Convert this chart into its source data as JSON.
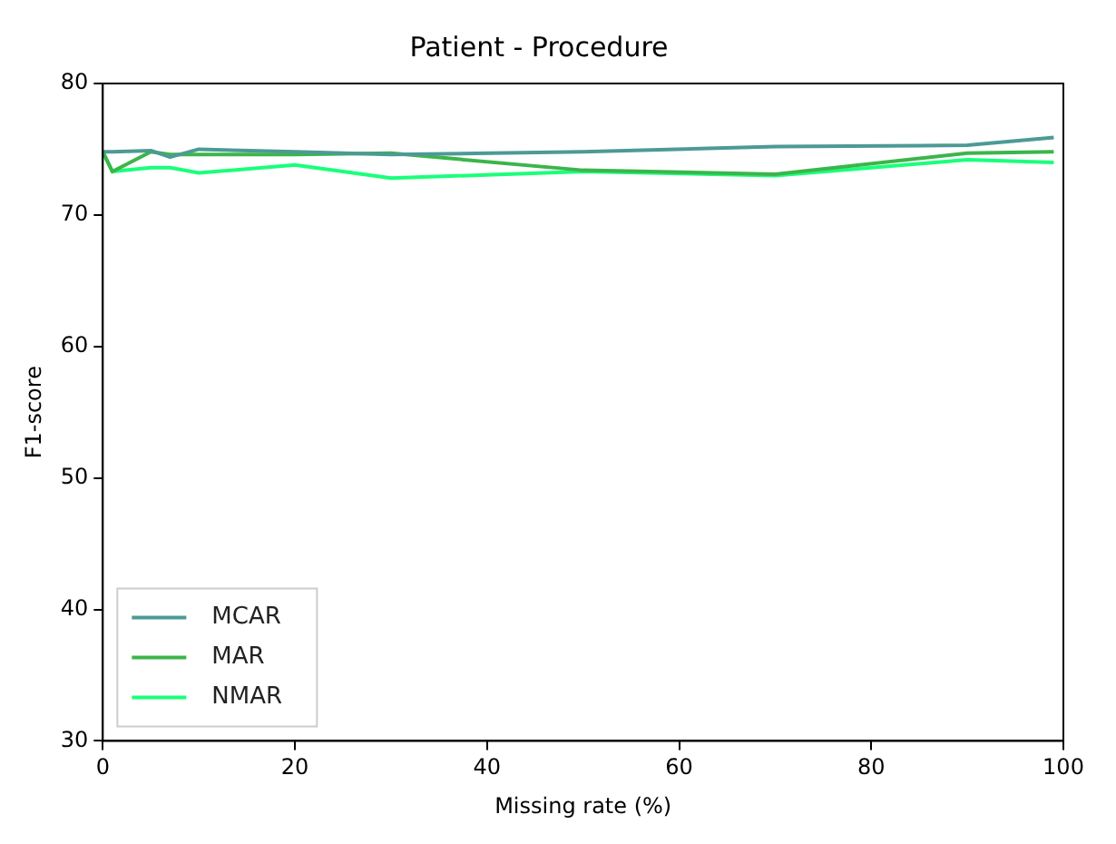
{
  "chart_data": {
    "type": "line",
    "title": "Patient - Procedure",
    "xlabel": "Missing rate (%)",
    "ylabel": "F1-score",
    "x": [
      0,
      1,
      5,
      7,
      10,
      20,
      30,
      50,
      70,
      90,
      99
    ],
    "series": [
      {
        "name": "MCAR",
        "color": "#4c9a95",
        "values": [
          74.8,
          74.8,
          74.9,
          74.4,
          75.0,
          74.8,
          74.6,
          74.8,
          75.2,
          75.3,
          75.9
        ]
      },
      {
        "name": "MAR",
        "color": "#3cb54a",
        "values": [
          74.8,
          73.3,
          74.8,
          74.6,
          74.6,
          74.6,
          74.7,
          73.4,
          73.1,
          74.7,
          74.8
        ]
      },
      {
        "name": "NMAR",
        "color": "#1aff7a",
        "values": [
          74.8,
          73.3,
          73.6,
          73.6,
          73.2,
          73.8,
          72.8,
          73.3,
          73.0,
          74.2,
          74.0
        ]
      }
    ],
    "xlim": [
      0,
      100
    ],
    "xticks": [
      0,
      20,
      40,
      60,
      80,
      100
    ],
    "ylim": [
      30,
      80
    ],
    "yticks": [
      30,
      40,
      50,
      60,
      70,
      80
    ],
    "legend": "bottom left",
    "grid": false,
    "marker": "none",
    "line_style": "solid"
  }
}
